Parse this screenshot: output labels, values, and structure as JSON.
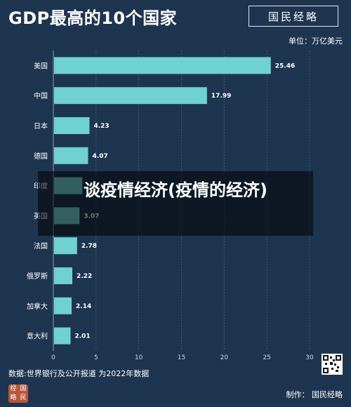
{
  "header": {
    "title": "GDP最高的10个国家",
    "logo_text": "国民经略"
  },
  "unit_label": "单位：万亿美元",
  "overlay": {
    "title": "谈疫情经济(疫情的经济)"
  },
  "source_label": "数据:世界银行及公开报道   为2022年数据",
  "footer": {
    "logo_chars": [
      "经",
      "国",
      "略",
      "民"
    ],
    "producer_label": "制作：  国民经略"
  },
  "colors": {
    "background": "#1e3550",
    "bar": "#6fd2cf",
    "grid": "#4a6178"
  },
  "chart_data": {
    "type": "bar",
    "orientation": "horizontal",
    "title": "GDP最高的10个国家",
    "unit": "单位：万亿美元",
    "categories": [
      "美国",
      "中国",
      "日本",
      "德国",
      "印度",
      "英国",
      "法国",
      "俄罗斯",
      "加拿大",
      "意大利"
    ],
    "values": [
      25.46,
      17.99,
      4.23,
      4.07,
      3.39,
      3.07,
      2.78,
      2.22,
      2.14,
      2.01
    ],
    "value_labels": [
      "25.46",
      "17.99",
      "4.23",
      "4.07",
      "",
      "3.07",
      "2.78",
      "2.22",
      "2.14",
      "2.01"
    ],
    "category_labels": [
      "美国",
      "中国",
      "日本",
      "德国",
      "印度",
      "英国",
      "法国",
      "俄罗斯",
      "加拿大",
      "意大利"
    ],
    "xlim": [
      0,
      30
    ],
    "xticks": [
      0,
      5,
      10,
      15,
      20,
      25,
      30
    ],
    "grid": true,
    "legend": "none"
  }
}
